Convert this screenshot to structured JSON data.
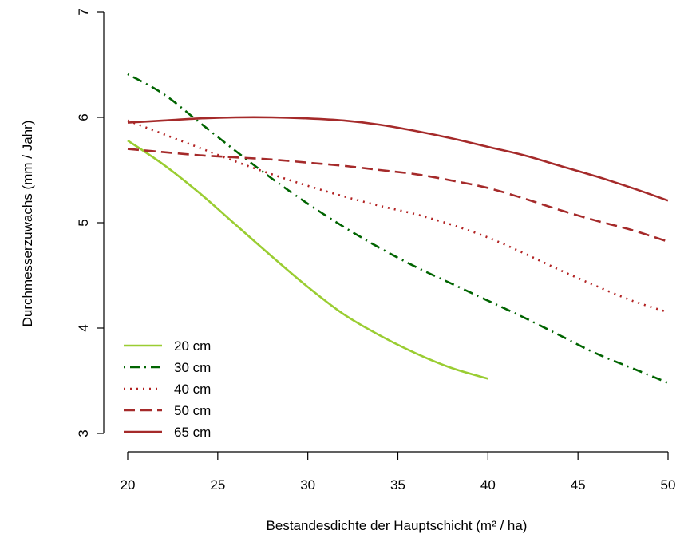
{
  "chart_data": {
    "type": "line",
    "title": "",
    "xlabel": "Bestandesdichte der Hauptschicht (m² / ha)",
    "ylabel": "Durchmesserzuwachs (mm / Jahr)",
    "xlim": [
      20,
      50
    ],
    "ylim": [
      3,
      7
    ],
    "xticks": [
      20,
      25,
      30,
      35,
      40,
      45,
      50
    ],
    "yticks": [
      3,
      4,
      5,
      6,
      7
    ],
    "grid": false,
    "legend_position": "bottom-left",
    "series": [
      {
        "name": "20 cm",
        "color": "#9acd32",
        "dash": "solid",
        "x": [
          20,
          22,
          24,
          26,
          28,
          30,
          32,
          34,
          36,
          38,
          40
        ],
        "y": [
          5.78,
          5.55,
          5.28,
          4.98,
          4.68,
          4.39,
          4.13,
          3.93,
          3.76,
          3.62,
          3.52
        ]
      },
      {
        "name": "30 cm",
        "color": "#006400",
        "dash": "dotdash",
        "x": [
          20,
          22,
          24,
          26,
          28,
          30,
          32,
          34,
          36,
          38,
          40,
          42,
          44,
          46,
          48,
          50
        ],
        "y": [
          6.41,
          6.22,
          5.95,
          5.68,
          5.42,
          5.18,
          4.96,
          4.76,
          4.58,
          4.42,
          4.26,
          4.1,
          3.93,
          3.76,
          3.62,
          3.48
        ]
      },
      {
        "name": "40 cm",
        "color": "#b22222",
        "dash": "dotted",
        "x": [
          20,
          22,
          24,
          26,
          28,
          30,
          32,
          34,
          36,
          38,
          40,
          42,
          44,
          46,
          48,
          50
        ],
        "y": [
          5.97,
          5.84,
          5.71,
          5.58,
          5.46,
          5.35,
          5.25,
          5.16,
          5.08,
          4.98,
          4.86,
          4.71,
          4.55,
          4.4,
          4.26,
          4.15
        ]
      },
      {
        "name": "50 cm",
        "color": "#a52a2a",
        "dash": "dashed",
        "x": [
          20,
          22,
          24,
          26,
          28,
          30,
          32,
          34,
          36,
          38,
          40,
          42,
          44,
          46,
          48,
          50
        ],
        "y": [
          5.7,
          5.67,
          5.64,
          5.62,
          5.6,
          5.57,
          5.54,
          5.5,
          5.46,
          5.4,
          5.33,
          5.23,
          5.12,
          5.02,
          4.93,
          4.82
        ]
      },
      {
        "name": "65 cm",
        "color": "#a52a2a",
        "dash": "solid",
        "x": [
          20,
          22,
          24,
          26,
          28,
          30,
          32,
          34,
          36,
          38,
          40,
          42,
          44,
          46,
          48,
          50
        ],
        "y": [
          5.95,
          5.97,
          5.99,
          6.0,
          6.0,
          5.99,
          5.97,
          5.93,
          5.87,
          5.8,
          5.72,
          5.64,
          5.54,
          5.44,
          5.33,
          5.21
        ]
      }
    ]
  }
}
